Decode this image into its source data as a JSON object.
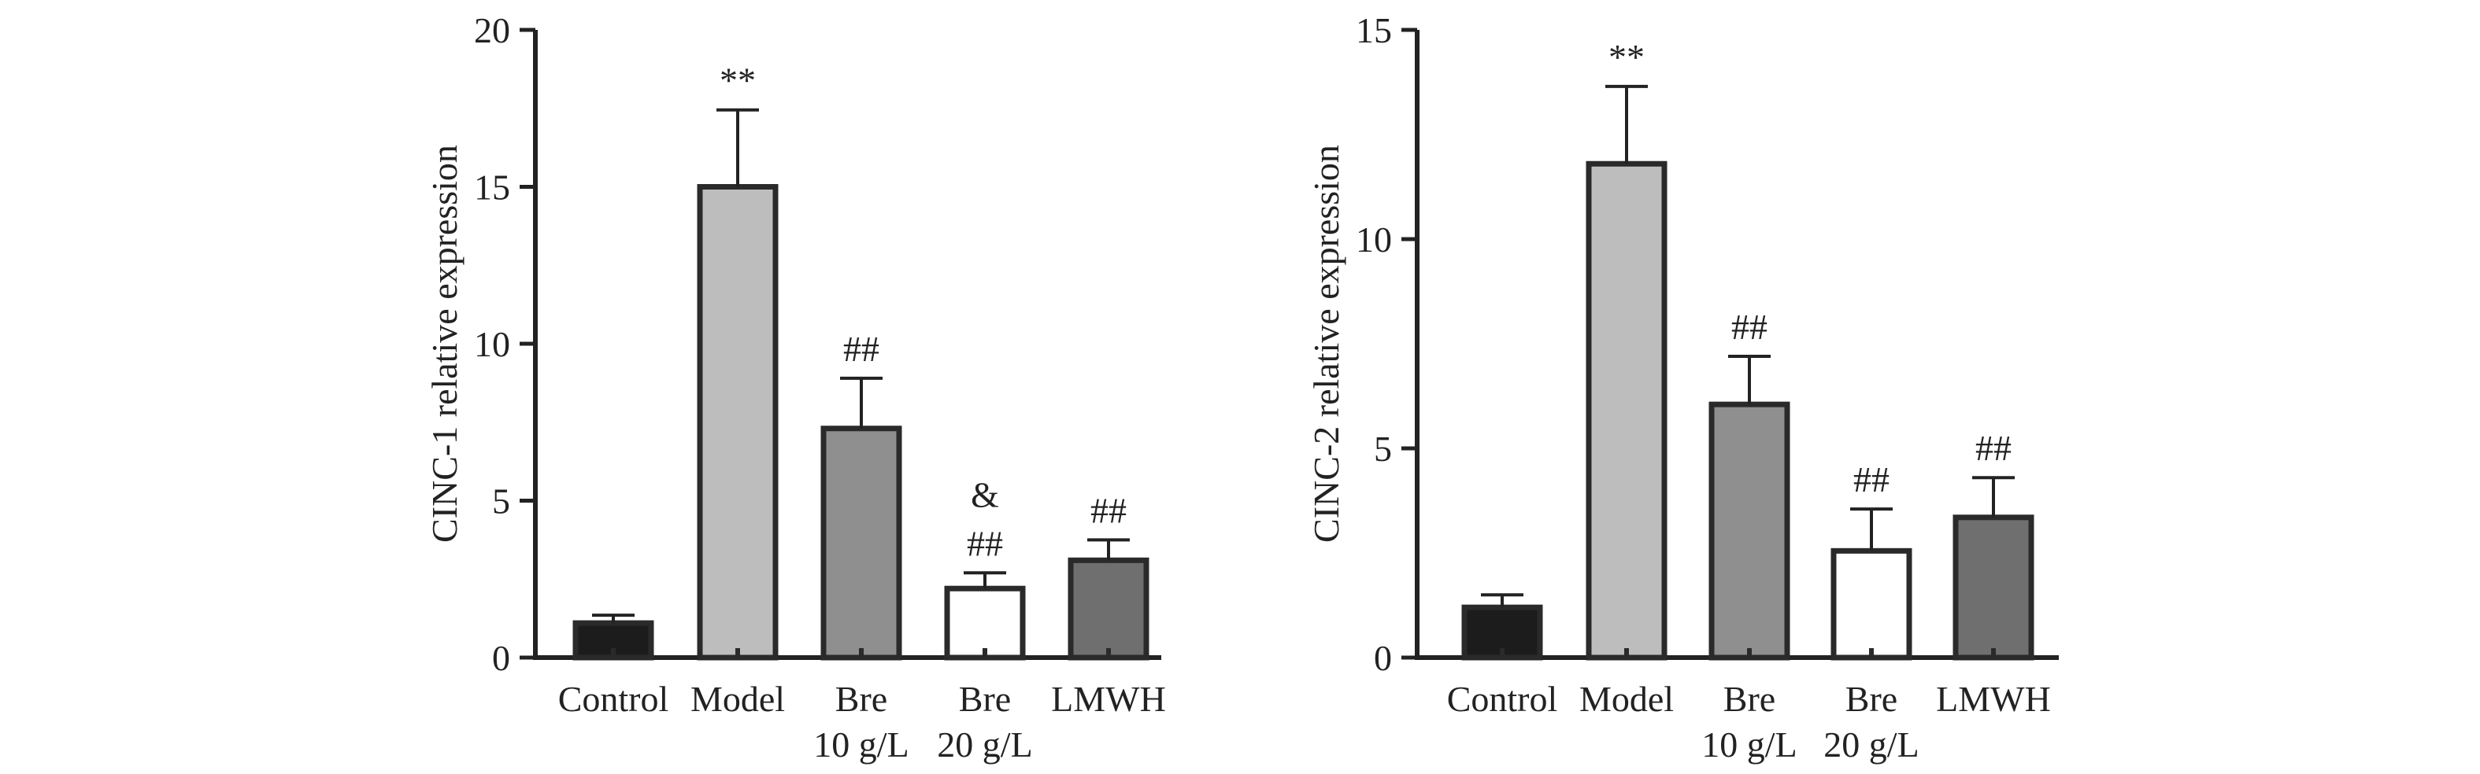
{
  "colors": {
    "axis": "#222222",
    "bar_stroke": "#2a2a2a",
    "control": "#1c1c1c",
    "model": "#bdbdbd",
    "bre10": "#8f8f8f",
    "bre20": "#ffffff",
    "lmwh": "#6f6f6f"
  },
  "chart_data": [
    {
      "type": "bar",
      "title": "",
      "xlabel": "",
      "ylabel": "CINC-1 relative expression",
      "ylim": [
        0,
        20
      ],
      "yticks": [
        0,
        5,
        10,
        15,
        20
      ],
      "categories": [
        {
          "line1": "Control",
          "line2": ""
        },
        {
          "line1": "Model",
          "line2": ""
        },
        {
          "line1": "Bre",
          "line2": "10 g/L"
        },
        {
          "line1": "Bre",
          "line2": "20 g/L"
        },
        {
          "line1": "LMWH",
          "line2": ""
        }
      ],
      "values": [
        1.1,
        15.0,
        7.3,
        2.2,
        3.1
      ],
      "errors": [
        0.25,
        2.45,
        1.6,
        0.5,
        0.65
      ],
      "annotations": [
        [],
        [
          "**"
        ],
        [
          "##"
        ],
        [
          "##",
          "&"
        ],
        [
          "##"
        ]
      ],
      "fill_keys": [
        "control",
        "model",
        "bre10",
        "bre20",
        "lmwh"
      ]
    },
    {
      "type": "bar",
      "title": "",
      "xlabel": "",
      "ylabel": "CINC-2 relative expression",
      "ylim": [
        0,
        15
      ],
      "yticks": [
        0,
        5,
        10,
        15
      ],
      "categories": [
        {
          "line1": "Control",
          "line2": ""
        },
        {
          "line1": "Model",
          "line2": ""
        },
        {
          "line1": "Bre",
          "line2": "10 g/L"
        },
        {
          "line1": "Bre",
          "line2": "20 g/L"
        },
        {
          "line1": "LMWH",
          "line2": ""
        }
      ],
      "values": [
        1.2,
        11.8,
        6.05,
        2.55,
        3.35
      ],
      "errors": [
        0.3,
        1.85,
        1.15,
        1.0,
        0.95
      ],
      "annotations": [
        [],
        [
          "**"
        ],
        [
          "##"
        ],
        [
          "##"
        ],
        [
          "##"
        ]
      ],
      "fill_keys": [
        "control",
        "model",
        "bre10",
        "bre20",
        "lmwh"
      ]
    }
  ]
}
